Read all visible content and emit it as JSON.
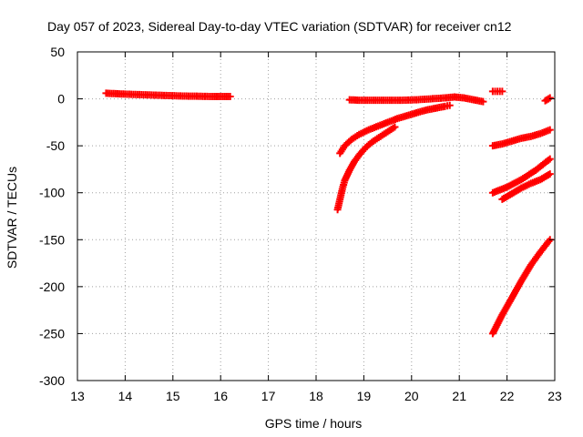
{
  "chart_data": {
    "type": "scatter",
    "title": "Day 057 of 2023, Sidereal Day-to-day VTEC variation (SDTVAR) for receiver cn12",
    "xlabel": "GPS time / hours",
    "ylabel": "SDTVAR / TECUs",
    "xlim": [
      13,
      23
    ],
    "ylim": [
      -300,
      50
    ],
    "xticks": [
      13,
      14,
      15,
      16,
      17,
      18,
      19,
      20,
      21,
      22,
      23
    ],
    "yticks": [
      50,
      0,
      -50,
      -100,
      -150,
      -200,
      -250,
      -300
    ],
    "xtick_labels": [
      "13",
      "14",
      "15",
      "16",
      "17",
      "18",
      "19",
      "20",
      "21",
      "22",
      "23"
    ],
    "ytick_labels": [
      "50",
      "0",
      "-50",
      "-100",
      "-150",
      "-200",
      "-250",
      "-300"
    ],
    "grid": true,
    "marker": "+",
    "marker_color": "#ff0000",
    "series": [
      {
        "x": [
          13.6,
          13.8,
          14.0,
          14.3,
          14.6,
          14.9,
          15.2,
          15.5,
          15.8,
          16.0,
          16.2
        ],
        "y": [
          6,
          5.5,
          5,
          4.5,
          4,
          3.5,
          3,
          2.8,
          2.5,
          2.5,
          2.5
        ]
      },
      {
        "x": [
          18.7,
          18.9,
          19.2,
          19.5,
          19.8,
          20.1,
          20.4,
          20.7,
          20.9,
          21.1,
          21.3,
          21.5
        ],
        "y": [
          -1,
          -1.5,
          -1.5,
          -1.5,
          -1.5,
          -1,
          0,
          1,
          2,
          1,
          -1,
          -3
        ]
      },
      {
        "x": [
          18.5,
          18.6,
          18.75,
          18.9,
          19.1,
          19.3,
          19.5,
          19.7,
          19.9,
          20.1,
          20.3,
          20.5,
          20.7,
          20.8
        ],
        "y": [
          -58,
          -50,
          -43,
          -38,
          -33,
          -29,
          -25,
          -21,
          -18,
          -15,
          -12,
          -10,
          -8,
          -7
        ]
      },
      {
        "x": [
          18.45,
          18.5,
          18.55,
          18.6,
          18.7,
          18.8,
          18.9,
          19.0,
          19.1,
          19.2,
          19.35,
          19.5,
          19.65
        ],
        "y": [
          -118,
          -107,
          -96,
          -87,
          -76,
          -67,
          -60,
          -54,
          -49,
          -45,
          -40,
          -35,
          -30
        ]
      },
      {
        "x": [
          21.7,
          21.8,
          21.9
        ],
        "y": [
          8,
          8,
          8
        ]
      },
      {
        "x": [
          22.8,
          22.9
        ],
        "y": [
          -2,
          1
        ]
      },
      {
        "x": [
          21.7,
          21.9,
          22.1,
          22.3,
          22.5,
          22.7,
          22.9
        ],
        "y": [
          -50,
          -48,
          -45,
          -42,
          -40,
          -37,
          -33
        ]
      },
      {
        "x": [
          21.7,
          22.0,
          22.3,
          22.6,
          22.9
        ],
        "y": [
          -100,
          -94,
          -86,
          -76,
          -64
        ]
      },
      {
        "x": [
          21.9,
          22.1,
          22.3,
          22.5,
          22.7,
          22.9
        ],
        "y": [
          -107,
          -101,
          -95,
          -90,
          -86,
          -80
        ]
      },
      {
        "x": [
          21.7,
          21.9,
          22.1,
          22.3,
          22.5,
          22.7,
          22.9
        ],
        "y": [
          -250,
          -230,
          -212,
          -194,
          -177,
          -163,
          -150
        ]
      }
    ]
  }
}
